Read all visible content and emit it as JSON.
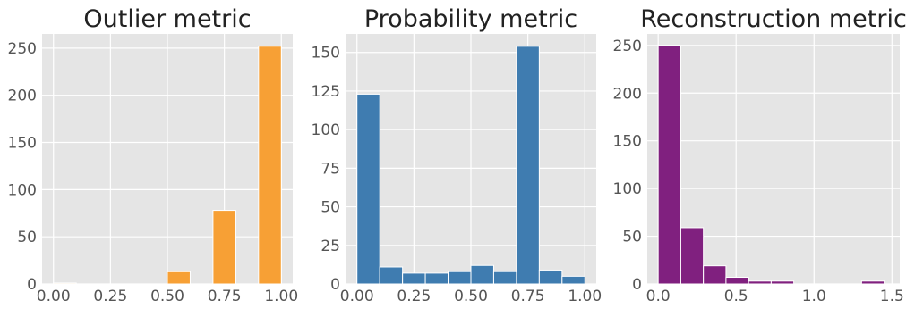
{
  "chart_data": [
    {
      "type": "bar",
      "title": "Outlier metric",
      "color": "#f7a035",
      "xlim": [
        -0.05,
        1.05
      ],
      "ylim": [
        0,
        265
      ],
      "xticks": [
        0.0,
        0.25,
        0.5,
        0.75,
        1.0
      ],
      "xtick_labels": [
        "0.00",
        "0.25",
        "0.50",
        "0.75",
        "1.00"
      ],
      "yticks": [
        0,
        50,
        100,
        150,
        200,
        250
      ],
      "ytick_labels": [
        "0",
        "50",
        "100",
        "150",
        "200",
        "250"
      ],
      "grid": true,
      "bin_edges": [
        0.0,
        0.125,
        0.25,
        0.375,
        0.5,
        0.625,
        0.75,
        0.875,
        1.0
      ],
      "bars": [
        {
          "x0": 0.0,
          "x1": 0.1,
          "value": 1
        },
        {
          "x0": 0.5,
          "x1": 0.6,
          "value": 13
        },
        {
          "x0": 0.7,
          "x1": 0.8,
          "value": 78
        },
        {
          "x0": 0.9,
          "x1": 1.0,
          "value": 252
        }
      ]
    },
    {
      "type": "bar",
      "title": "Probability metric",
      "color": "#3f7cb0",
      "xlim": [
        -0.05,
        1.05
      ],
      "ylim": [
        0,
        162
      ],
      "xticks": [
        0.0,
        0.25,
        0.5,
        0.75,
        1.0
      ],
      "xtick_labels": [
        "0.00",
        "0.25",
        "0.50",
        "0.75",
        "1.00"
      ],
      "yticks": [
        0,
        25,
        50,
        75,
        100,
        125,
        150
      ],
      "ytick_labels": [
        "0",
        "25",
        "50",
        "75",
        "100",
        "125",
        "150"
      ],
      "grid": true,
      "bars": [
        {
          "x0": 0.0,
          "x1": 0.1,
          "value": 123
        },
        {
          "x0": 0.1,
          "x1": 0.2,
          "value": 11
        },
        {
          "x0": 0.2,
          "x1": 0.3,
          "value": 7
        },
        {
          "x0": 0.3,
          "x1": 0.4,
          "value": 7
        },
        {
          "x0": 0.4,
          "x1": 0.5,
          "value": 8
        },
        {
          "x0": 0.5,
          "x1": 0.6,
          "value": 12
        },
        {
          "x0": 0.6,
          "x1": 0.7,
          "value": 8
        },
        {
          "x0": 0.7,
          "x1": 0.8,
          "value": 154
        },
        {
          "x0": 0.8,
          "x1": 0.9,
          "value": 9
        },
        {
          "x0": 0.9,
          "x1": 1.0,
          "value": 5
        }
      ]
    },
    {
      "type": "bar",
      "title": "Reconstruction metric",
      "color": "#80207f",
      "xlim": [
        -0.07,
        1.55
      ],
      "ylim": [
        0,
        262
      ],
      "xticks": [
        0.0,
        0.5,
        1.0,
        1.5
      ],
      "xtick_labels": [
        "0.0",
        "0.5",
        "1.0",
        "1.5"
      ],
      "yticks": [
        0,
        50,
        100,
        150,
        200,
        250
      ],
      "ytick_labels": [
        "0",
        "50",
        "100",
        "150",
        "200",
        "250"
      ],
      "grid": true,
      "bars": [
        {
          "x0": 0.0,
          "x1": 0.145,
          "value": 250
        },
        {
          "x0": 0.145,
          "x1": 0.29,
          "value": 59
        },
        {
          "x0": 0.29,
          "x1": 0.435,
          "value": 19
        },
        {
          "x0": 0.435,
          "x1": 0.58,
          "value": 7
        },
        {
          "x0": 0.58,
          "x1": 0.725,
          "value": 3
        },
        {
          "x0": 0.725,
          "x1": 0.87,
          "value": 3
        },
        {
          "x0": 0.87,
          "x1": 1.015,
          "value": 0
        },
        {
          "x0": 1.015,
          "x1": 1.16,
          "value": 0
        },
        {
          "x0": 1.16,
          "x1": 1.305,
          "value": 0
        },
        {
          "x0": 1.305,
          "x1": 1.45,
          "value": 3
        }
      ]
    }
  ]
}
